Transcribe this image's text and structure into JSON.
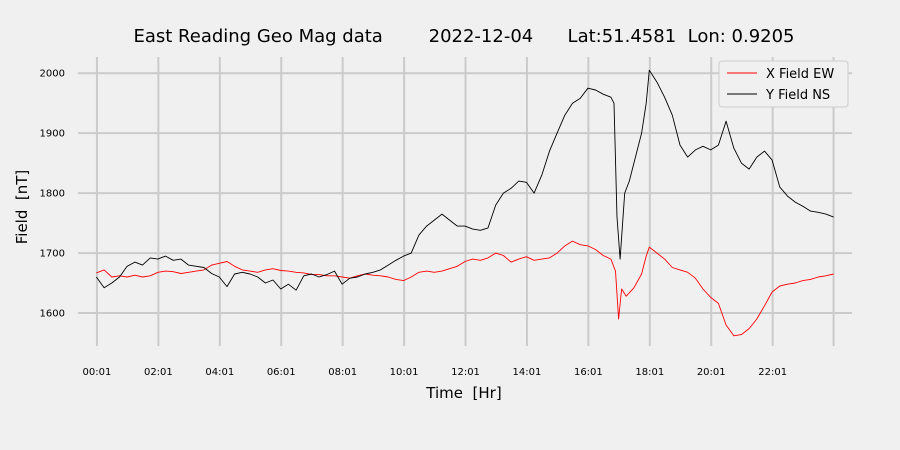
{
  "chart_data": {
    "type": "line",
    "title": "East Reading Geo Mag data        2022-12-04      Lat:51.4581  Lon: 0.9205",
    "xlabel": "Time  [Hr]",
    "ylabel": "Field  [nT]",
    "x_unit": "hours",
    "xlim": [
      -0.6,
      24.6
    ],
    "ylim": [
      1545,
      2027
    ],
    "x_ticks": [
      {
        "value": 0.017,
        "label": "00:01"
      },
      {
        "value": 2.017,
        "label": "02:01"
      },
      {
        "value": 4.017,
        "label": "04:01"
      },
      {
        "value": 6.017,
        "label": "06:01"
      },
      {
        "value": 8.017,
        "label": "08:01"
      },
      {
        "value": 10.017,
        "label": "10:01"
      },
      {
        "value": 12.017,
        "label": "12:01"
      },
      {
        "value": 14.017,
        "label": "14:01"
      },
      {
        "value": 16.017,
        "label": "16:01"
      },
      {
        "value": 18.017,
        "label": "18:01"
      },
      {
        "value": 20.017,
        "label": "20:01"
      },
      {
        "value": 22.017,
        "label": "22:01"
      },
      {
        "value": 24.0,
        "label": ""
      }
    ],
    "y_ticks": [
      1600,
      1700,
      1800,
      1900,
      2000
    ],
    "grid": true,
    "legend_position": "top-right",
    "series": [
      {
        "name": "X Field EW",
        "color": "#ff0000",
        "points": [
          [
            0.0,
            1667
          ],
          [
            0.25,
            1672
          ],
          [
            0.5,
            1660
          ],
          [
            0.75,
            1662
          ],
          [
            1.0,
            1660
          ],
          [
            1.25,
            1663
          ],
          [
            1.5,
            1660
          ],
          [
            1.75,
            1662
          ],
          [
            2.0,
            1668
          ],
          [
            2.25,
            1670
          ],
          [
            2.5,
            1669
          ],
          [
            2.75,
            1666
          ],
          [
            3.0,
            1668
          ],
          [
            3.25,
            1670
          ],
          [
            3.5,
            1672
          ],
          [
            3.75,
            1680
          ],
          [
            4.0,
            1683
          ],
          [
            4.25,
            1686
          ],
          [
            4.5,
            1678
          ],
          [
            4.75,
            1672
          ],
          [
            5.0,
            1670
          ],
          [
            5.25,
            1668
          ],
          [
            5.5,
            1672
          ],
          [
            5.75,
            1674
          ],
          [
            6.0,
            1671
          ],
          [
            6.25,
            1670
          ],
          [
            6.5,
            1668
          ],
          [
            6.75,
            1667
          ],
          [
            7.0,
            1664
          ],
          [
            7.25,
            1664
          ],
          [
            7.5,
            1662
          ],
          [
            7.75,
            1662
          ],
          [
            8.0,
            1660
          ],
          [
            8.25,
            1658
          ],
          [
            8.5,
            1662
          ],
          [
            8.75,
            1665
          ],
          [
            9.0,
            1663
          ],
          [
            9.25,
            1662
          ],
          [
            9.5,
            1660
          ],
          [
            9.75,
            1656
          ],
          [
            10.0,
            1654
          ],
          [
            10.25,
            1660
          ],
          [
            10.5,
            1668
          ],
          [
            10.75,
            1670
          ],
          [
            11.0,
            1668
          ],
          [
            11.25,
            1670
          ],
          [
            11.5,
            1674
          ],
          [
            11.75,
            1678
          ],
          [
            12.0,
            1686
          ],
          [
            12.25,
            1690
          ],
          [
            12.5,
            1688
          ],
          [
            12.75,
            1692
          ],
          [
            13.0,
            1700
          ],
          [
            13.25,
            1696
          ],
          [
            13.5,
            1685
          ],
          [
            13.75,
            1690
          ],
          [
            14.0,
            1694
          ],
          [
            14.25,
            1688
          ],
          [
            14.5,
            1690
          ],
          [
            14.75,
            1692
          ],
          [
            15.0,
            1700
          ],
          [
            15.25,
            1712
          ],
          [
            15.5,
            1720
          ],
          [
            15.75,
            1714
          ],
          [
            16.0,
            1712
          ],
          [
            16.25,
            1706
          ],
          [
            16.5,
            1696
          ],
          [
            16.75,
            1690
          ],
          [
            16.9,
            1670
          ],
          [
            17.0,
            1590
          ],
          [
            17.1,
            1640
          ],
          [
            17.25,
            1628
          ],
          [
            17.5,
            1642
          ],
          [
            17.75,
            1665
          ],
          [
            17.9,
            1695
          ],
          [
            18.0,
            1710
          ],
          [
            18.25,
            1700
          ],
          [
            18.5,
            1690
          ],
          [
            18.75,
            1676
          ],
          [
            19.0,
            1672
          ],
          [
            19.25,
            1668
          ],
          [
            19.5,
            1658
          ],
          [
            19.75,
            1640
          ],
          [
            20.0,
            1626
          ],
          [
            20.25,
            1616
          ],
          [
            20.5,
            1580
          ],
          [
            20.75,
            1562
          ],
          [
            21.0,
            1564
          ],
          [
            21.25,
            1574
          ],
          [
            21.5,
            1590
          ],
          [
            21.75,
            1612
          ],
          [
            22.0,
            1635
          ],
          [
            22.25,
            1645
          ],
          [
            22.5,
            1648
          ],
          [
            22.75,
            1650
          ],
          [
            23.0,
            1654
          ],
          [
            23.25,
            1656
          ],
          [
            23.5,
            1660
          ],
          [
            23.75,
            1662
          ],
          [
            24.0,
            1665
          ]
        ]
      },
      {
        "name": "Y Field NS",
        "color": "#000000",
        "points": [
          [
            0.0,
            1660
          ],
          [
            0.25,
            1642
          ],
          [
            0.5,
            1650
          ],
          [
            0.75,
            1660
          ],
          [
            1.0,
            1678
          ],
          [
            1.25,
            1685
          ],
          [
            1.5,
            1680
          ],
          [
            1.75,
            1692
          ],
          [
            2.0,
            1690
          ],
          [
            2.25,
            1695
          ],
          [
            2.5,
            1688
          ],
          [
            2.75,
            1690
          ],
          [
            3.0,
            1680
          ],
          [
            3.25,
            1678
          ],
          [
            3.5,
            1676
          ],
          [
            3.75,
            1666
          ],
          [
            4.0,
            1660
          ],
          [
            4.25,
            1644
          ],
          [
            4.5,
            1665
          ],
          [
            4.75,
            1668
          ],
          [
            5.0,
            1665
          ],
          [
            5.25,
            1660
          ],
          [
            5.5,
            1650
          ],
          [
            5.75,
            1655
          ],
          [
            6.0,
            1640
          ],
          [
            6.25,
            1648
          ],
          [
            6.5,
            1638
          ],
          [
            6.75,
            1662
          ],
          [
            7.0,
            1665
          ],
          [
            7.25,
            1660
          ],
          [
            7.5,
            1664
          ],
          [
            7.75,
            1670
          ],
          [
            8.0,
            1648
          ],
          [
            8.25,
            1658
          ],
          [
            8.5,
            1660
          ],
          [
            8.75,
            1665
          ],
          [
            9.0,
            1668
          ],
          [
            9.25,
            1672
          ],
          [
            9.5,
            1680
          ],
          [
            9.75,
            1688
          ],
          [
            10.0,
            1695
          ],
          [
            10.25,
            1700
          ],
          [
            10.5,
            1730
          ],
          [
            10.75,
            1745
          ],
          [
            11.0,
            1755
          ],
          [
            11.25,
            1765
          ],
          [
            11.5,
            1755
          ],
          [
            11.75,
            1745
          ],
          [
            12.0,
            1745
          ],
          [
            12.25,
            1740
          ],
          [
            12.5,
            1738
          ],
          [
            12.75,
            1742
          ],
          [
            13.0,
            1780
          ],
          [
            13.25,
            1800
          ],
          [
            13.5,
            1808
          ],
          [
            13.75,
            1820
          ],
          [
            14.0,
            1818
          ],
          [
            14.25,
            1800
          ],
          [
            14.5,
            1830
          ],
          [
            14.75,
            1870
          ],
          [
            15.0,
            1900
          ],
          [
            15.25,
            1930
          ],
          [
            15.5,
            1950
          ],
          [
            15.75,
            1958
          ],
          [
            16.0,
            1975
          ],
          [
            16.25,
            1972
          ],
          [
            16.5,
            1965
          ],
          [
            16.75,
            1960
          ],
          [
            16.85,
            1950
          ],
          [
            16.95,
            1760
          ],
          [
            17.05,
            1690
          ],
          [
            17.2,
            1800
          ],
          [
            17.35,
            1820
          ],
          [
            17.5,
            1850
          ],
          [
            17.75,
            1900
          ],
          [
            17.9,
            1950
          ],
          [
            18.0,
            2005
          ],
          [
            18.25,
            1985
          ],
          [
            18.5,
            1960
          ],
          [
            18.75,
            1930
          ],
          [
            19.0,
            1880
          ],
          [
            19.25,
            1860
          ],
          [
            19.5,
            1872
          ],
          [
            19.75,
            1878
          ],
          [
            20.0,
            1872
          ],
          [
            20.25,
            1880
          ],
          [
            20.5,
            1920
          ],
          [
            20.75,
            1875
          ],
          [
            21.0,
            1850
          ],
          [
            21.25,
            1840
          ],
          [
            21.5,
            1860
          ],
          [
            21.75,
            1870
          ],
          [
            22.0,
            1855
          ],
          [
            22.25,
            1810
          ],
          [
            22.5,
            1795
          ],
          [
            22.75,
            1785
          ],
          [
            23.0,
            1778
          ],
          [
            23.25,
            1770
          ],
          [
            23.5,
            1768
          ],
          [
            23.75,
            1765
          ],
          [
            24.0,
            1760
          ]
        ]
      }
    ]
  }
}
